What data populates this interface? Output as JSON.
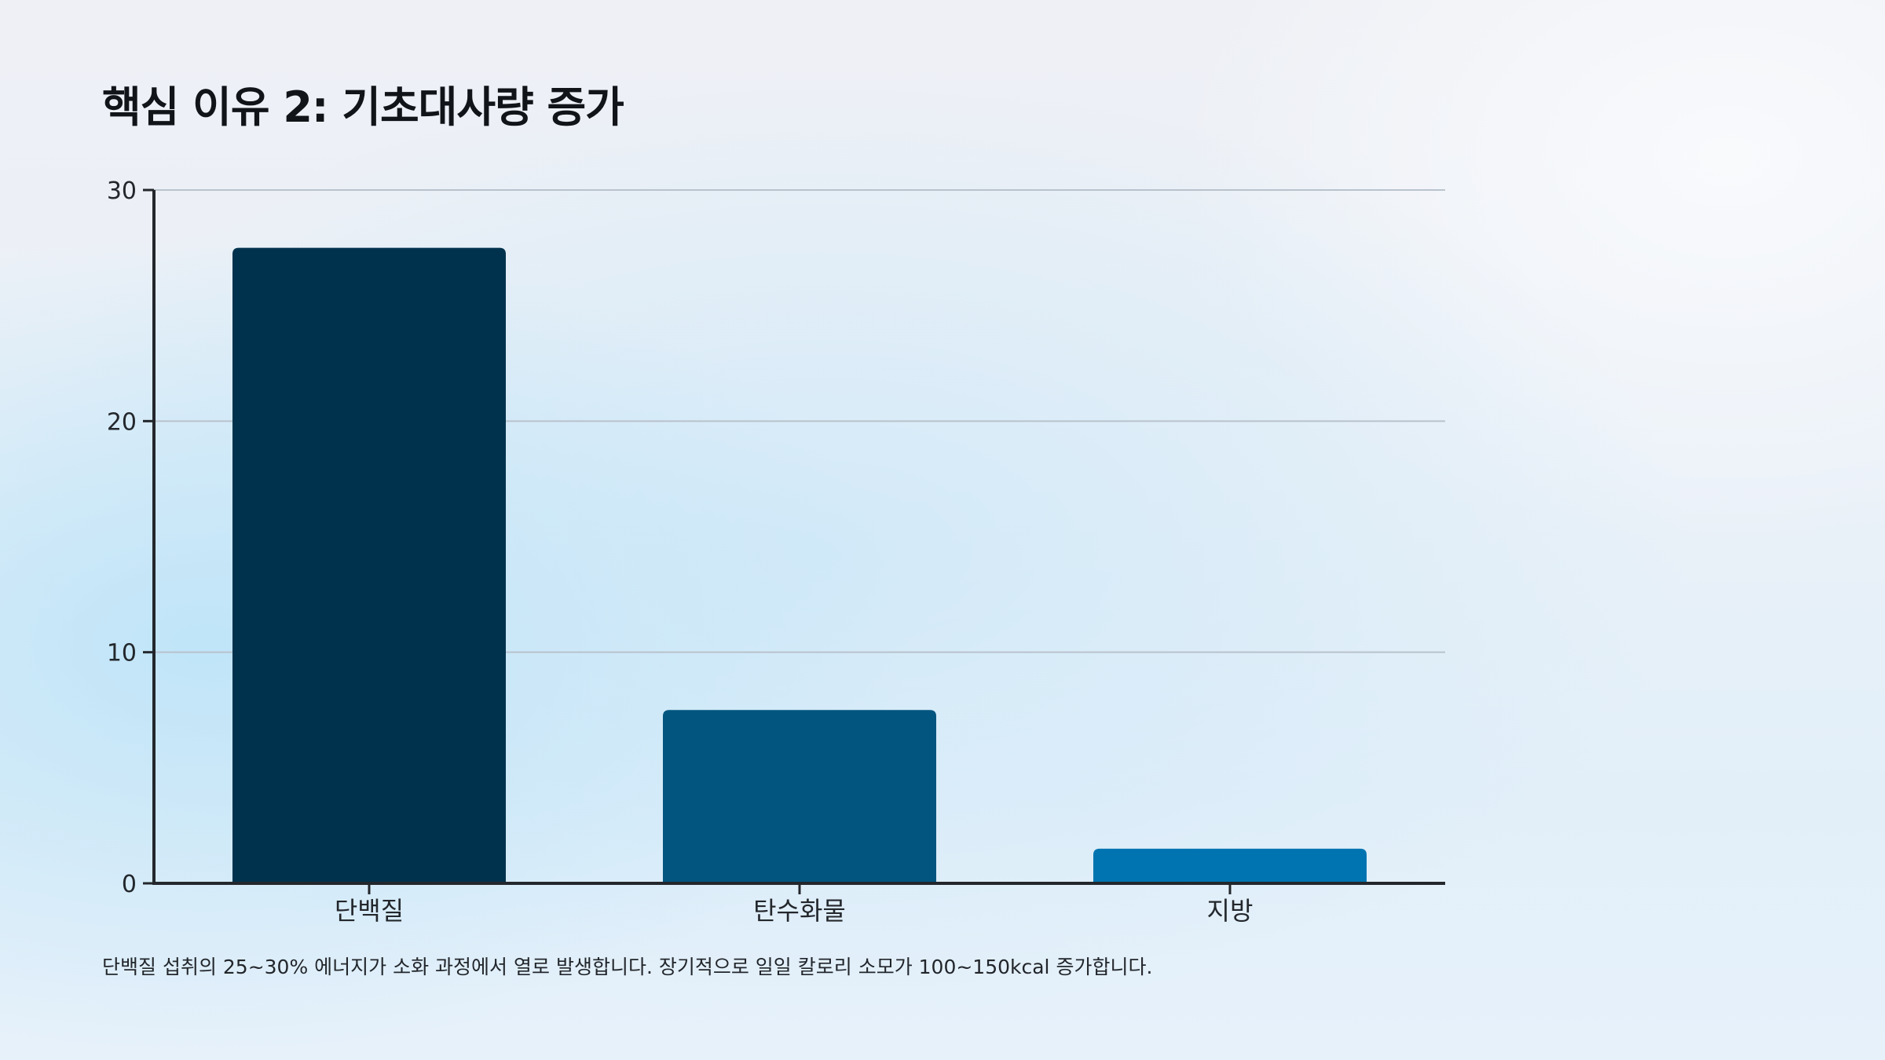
{
  "slide": {
    "title": "핵심 이유 2: 기초대사량 증가",
    "caption": "단백질 섭취의 25~30% 에너지가 소화 과정에서 열로 발생합니다. 장기적으로 일일 칼로리 소모가 100~150kcal 증가합니다."
  },
  "chart_data": {
    "type": "bar",
    "title": "",
    "xlabel": "",
    "ylabel": "",
    "categories": [
      "단백질",
      "탄수화물",
      "지방"
    ],
    "values": [
      27.5,
      7.5,
      1.5
    ],
    "bar_colors": [
      "#00324d",
      "#01557f",
      "#0074b0"
    ],
    "ylim": [
      0,
      30
    ],
    "yticks": [
      0,
      10,
      20,
      30
    ],
    "ytick_labels": [
      "0",
      "10",
      "20",
      "30"
    ],
    "grid": true,
    "legend": "none"
  }
}
